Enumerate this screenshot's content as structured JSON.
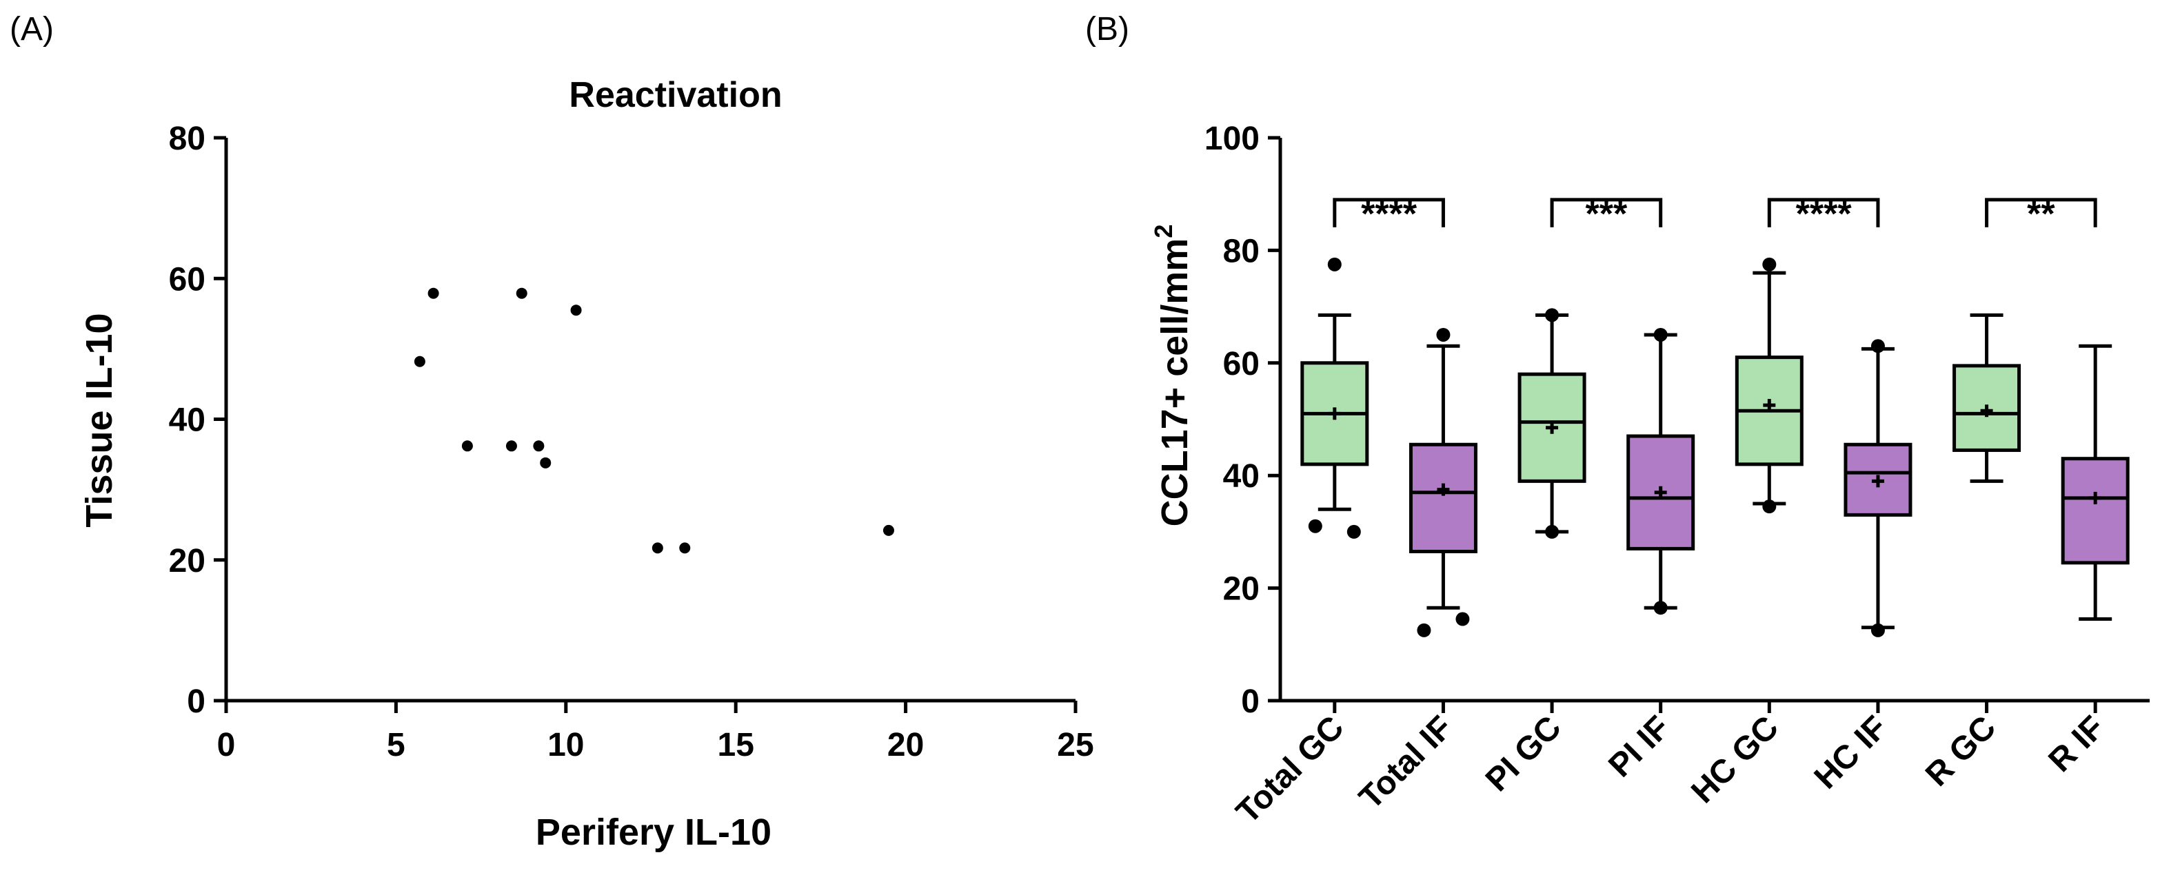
{
  "chart_data": [
    {
      "panel": "(A)",
      "type": "scatter",
      "title": "Reactivation",
      "xlabel": "Perifery IL-10",
      "ylabel": "Tissue IL-10",
      "xlim": [
        0,
        25
      ],
      "ylim": [
        0,
        80
      ],
      "xticks": [
        0,
        5,
        10,
        15,
        20,
        25
      ],
      "yticks": [
        0,
        20,
        40,
        60,
        80
      ],
      "points": [
        {
          "x": 5.7,
          "y": 48.2
        },
        {
          "x": 6.1,
          "y": 57.9
        },
        {
          "x": 7.1,
          "y": 36.2
        },
        {
          "x": 8.4,
          "y": 36.2
        },
        {
          "x": 8.7,
          "y": 57.9
        },
        {
          "x": 9.2,
          "y": 36.2
        },
        {
          "x": 9.4,
          "y": 33.8
        },
        {
          "x": 10.3,
          "y": 55.5
        },
        {
          "x": 12.7,
          "y": 21.7
        },
        {
          "x": 13.5,
          "y": 21.7
        },
        {
          "x": 19.5,
          "y": 24.2
        }
      ]
    },
    {
      "panel": "(B)",
      "type": "box",
      "ylabel": "CCL17+ cell/mm",
      "ylabel_sup": "2",
      "ylim": [
        0,
        100
      ],
      "yticks": [
        0,
        20,
        40,
        60,
        80,
        100
      ],
      "categories": [
        "Total GC",
        "Total IF",
        "PI GC",
        "PI IF",
        "HC GC",
        "HC IF",
        "R GC",
        "R IF"
      ],
      "colors": {
        "GC": "#aee0b0",
        "IF": "#b07cc6"
      },
      "boxes": [
        {
          "name": "Total GC",
          "group": "GC",
          "whisker_low": 34,
          "q1": 42,
          "median": 51,
          "q3": 60,
          "whisker_high": 68.5,
          "mean": 51,
          "outliers": [
            31,
            30,
            77.5
          ]
        },
        {
          "name": "Total IF",
          "group": "IF",
          "whisker_low": 16.5,
          "q1": 26.5,
          "median": 37,
          "q3": 45.5,
          "whisker_high": 63,
          "mean": 37.5,
          "outliers": [
            65,
            14.5,
            12.5
          ]
        },
        {
          "name": "PI GC",
          "group": "GC",
          "whisker_low": 30,
          "q1": 39,
          "median": 49.5,
          "q3": 58,
          "whisker_high": 68.5,
          "mean": 48.5,
          "outliers": [
            30,
            68.5
          ]
        },
        {
          "name": "PI IF",
          "group": "IF",
          "whisker_low": 16.5,
          "q1": 27,
          "median": 36,
          "q3": 47,
          "whisker_high": 65,
          "mean": 37,
          "outliers": [
            16.5,
            65
          ]
        },
        {
          "name": "HC GC",
          "group": "GC",
          "whisker_low": 35,
          "q1": 42,
          "median": 51.5,
          "q3": 61,
          "whisker_high": 76,
          "mean": 52.5,
          "outliers": [
            34.5,
            77.5
          ]
        },
        {
          "name": "HC IF",
          "group": "IF",
          "whisker_low": 13,
          "q1": 33,
          "median": 40.5,
          "q3": 45.5,
          "whisker_high": 62.5,
          "mean": 39,
          "outliers": [
            12.5,
            63
          ]
        },
        {
          "name": "R GC",
          "group": "GC",
          "whisker_low": 39,
          "q1": 44.5,
          "median": 51,
          "q3": 59.5,
          "whisker_high": 68.5,
          "mean": 51.5,
          "outliers": []
        },
        {
          "name": "R IF",
          "group": "IF",
          "whisker_low": 14.5,
          "q1": 24.5,
          "median": 36,
          "q3": 43,
          "whisker_high": 63,
          "mean": 36,
          "outliers": []
        }
      ],
      "significance": [
        {
          "from": "Total GC",
          "to": "Total IF",
          "label": "****",
          "level": 89
        },
        {
          "from": "PI GC",
          "to": "PI IF",
          "label": "***",
          "level": 89
        },
        {
          "from": "HC GC",
          "to": "HC IF",
          "label": "****",
          "level": 89
        },
        {
          "from": "R GC",
          "to": "R IF",
          "label": "**",
          "level": 89
        }
      ]
    }
  ]
}
